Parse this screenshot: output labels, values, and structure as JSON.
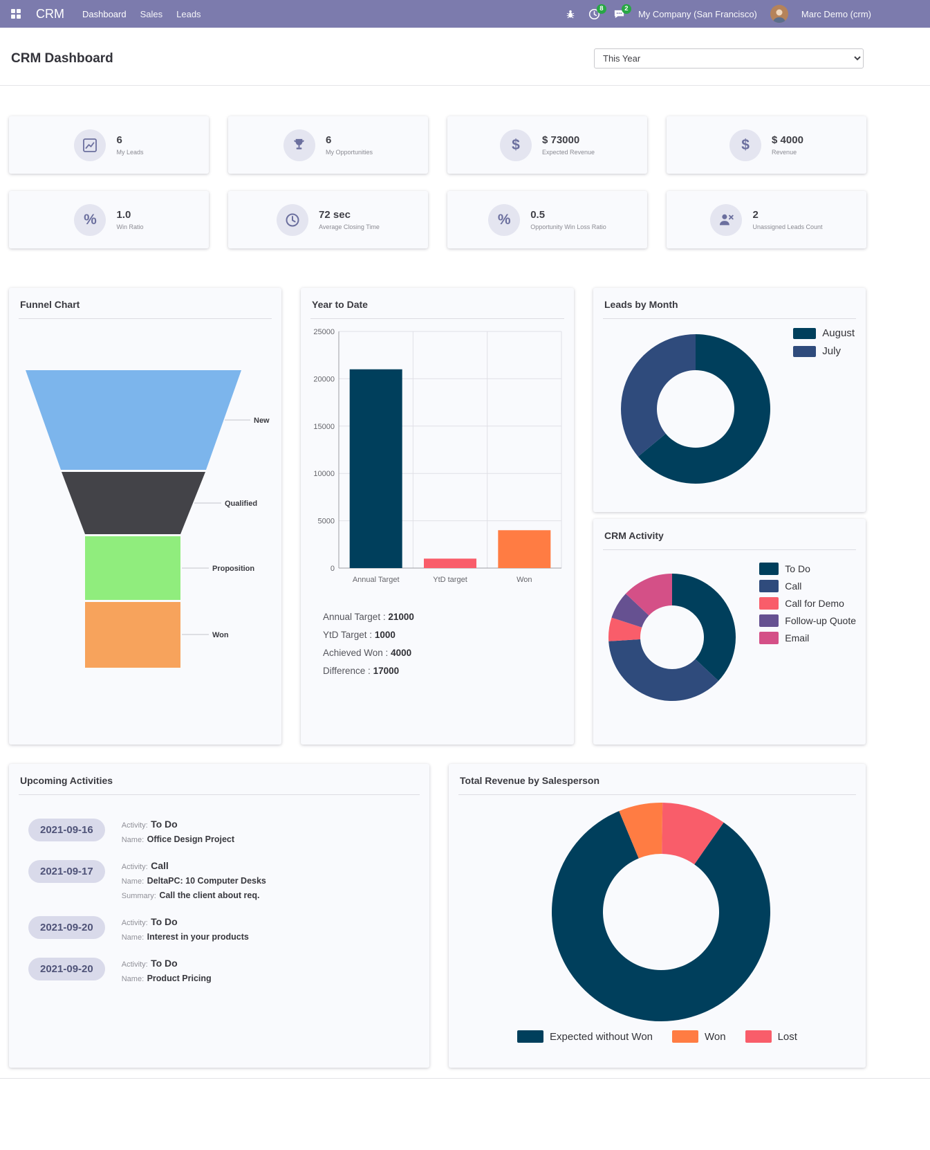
{
  "navbar": {
    "app_name": "CRM",
    "menu_items": [
      {
        "label": "Dashboard"
      },
      {
        "label": "Sales"
      },
      {
        "label": "Leads"
      }
    ],
    "activities_badge": "8",
    "messages_badge": "2",
    "company_name": "My Company (San Francisco)",
    "user_name": "Marc Demo (crm)"
  },
  "header": {
    "title": "CRM Dashboard",
    "period_filter": "This Year"
  },
  "icons": {
    "dollar": "$",
    "percent": "%"
  },
  "kpis": [
    {
      "icon": "line-chart-icon",
      "value": "6",
      "label": "My Leads"
    },
    {
      "icon": "trophy-icon",
      "value": "6",
      "label": "My Opportunities"
    },
    {
      "icon": "dollar-icon",
      "value": "$ 73000",
      "label": "Expected Revenue"
    },
    {
      "icon": "dollar-icon",
      "value": "$ 4000",
      "label": "Revenue"
    },
    {
      "icon": "percent-icon",
      "value": "1.0",
      "label": "Win Ratio"
    },
    {
      "icon": "clock-icon",
      "value": "72 sec",
      "label": "Average Closing Time"
    },
    {
      "icon": "percent-icon",
      "value": "0.5",
      "label": "Opportunity Win Loss Ratio"
    },
    {
      "icon": "user-x-icon",
      "value": "2",
      "label": "Unassigned Leads Count"
    }
  ],
  "ytd_stats": [
    {
      "label": "Annual Target :",
      "value": "21000"
    },
    {
      "label": "YtD Target :",
      "value": "1000"
    },
    {
      "label": "Achieved Won :",
      "value": "4000"
    },
    {
      "label": "Difference :",
      "value": "17000"
    }
  ],
  "upcoming_activities": {
    "title": "Upcoming Activities",
    "labels": {
      "activity": "Activity:",
      "name": "Name:",
      "summary": "Summary:"
    },
    "items": [
      {
        "date": "2021-09-16",
        "activity": "To Do",
        "name": "Office Design Project"
      },
      {
        "date": "2021-09-17",
        "activity": "Call",
        "name": "DeltaPC: 10 Computer Desks",
        "summary": "Call the client about req."
      },
      {
        "date": "2021-09-20",
        "activity": "To Do",
        "name": "Interest in your products"
      },
      {
        "date": "2021-09-20",
        "activity": "To Do",
        "name": "Product Pricing"
      }
    ]
  },
  "chart_data": [
    {
      "id": "funnel",
      "type": "funnel",
      "title": "Funnel Chart",
      "stages": [
        {
          "label": "New",
          "color": "#7cb5ec"
        },
        {
          "label": "Qualified",
          "color": "#434348"
        },
        {
          "label": "Proposition",
          "color": "#90ed7d"
        },
        {
          "label": "Won",
          "color": "#f7a35c"
        }
      ]
    },
    {
      "id": "ytd",
      "type": "bar",
      "title": "Year to Date",
      "categories": [
        "Annual Target",
        "YtD target",
        "Won"
      ],
      "values": [
        21000,
        1000,
        4000
      ],
      "colors": [
        "#003f5c",
        "#f95d6a",
        "#ff7c43"
      ],
      "ylim": [
        0,
        25000
      ],
      "yticks": [
        0,
        5000,
        10000,
        15000,
        20000,
        25000
      ],
      "grid": true,
      "legend_position": "none"
    },
    {
      "id": "leads-by-month",
      "type": "pie",
      "title": "Leads by Month",
      "labels": [
        "August",
        "July"
      ],
      "values": [
        64,
        36
      ],
      "colors": [
        "#003f5c",
        "#2f4b7c"
      ],
      "donut": true,
      "legend_position": "top-right"
    },
    {
      "id": "crm-activity",
      "type": "pie",
      "title": "CRM Activity",
      "labels": [
        "To Do",
        "Call",
        "Call for Demo",
        "Follow-up Quote",
        "Email"
      ],
      "values": [
        37,
        37,
        6,
        7,
        13
      ],
      "colors": [
        "#003f5c",
        "#2f4b7c",
        "#f95d6a",
        "#665191",
        "#d45087"
      ],
      "donut": true,
      "legend_position": "right"
    },
    {
      "id": "revenue-by-salesperson",
      "type": "pie",
      "title": "Total Revenue by Salesperson",
      "labels": [
        "Expected without Won",
        "Won",
        "Lost"
      ],
      "values": [
        84,
        6.5,
        9.5
      ],
      "colors": [
        "#003f5c",
        "#ff7c43",
        "#f95d6a"
      ],
      "donut": true,
      "legend_position": "bottom",
      "start_angle": 35
    }
  ],
  "colors": {
    "navbar": "#7c7bad",
    "badge_green": "#28a745",
    "icon_accent": "#6b6f9e"
  }
}
